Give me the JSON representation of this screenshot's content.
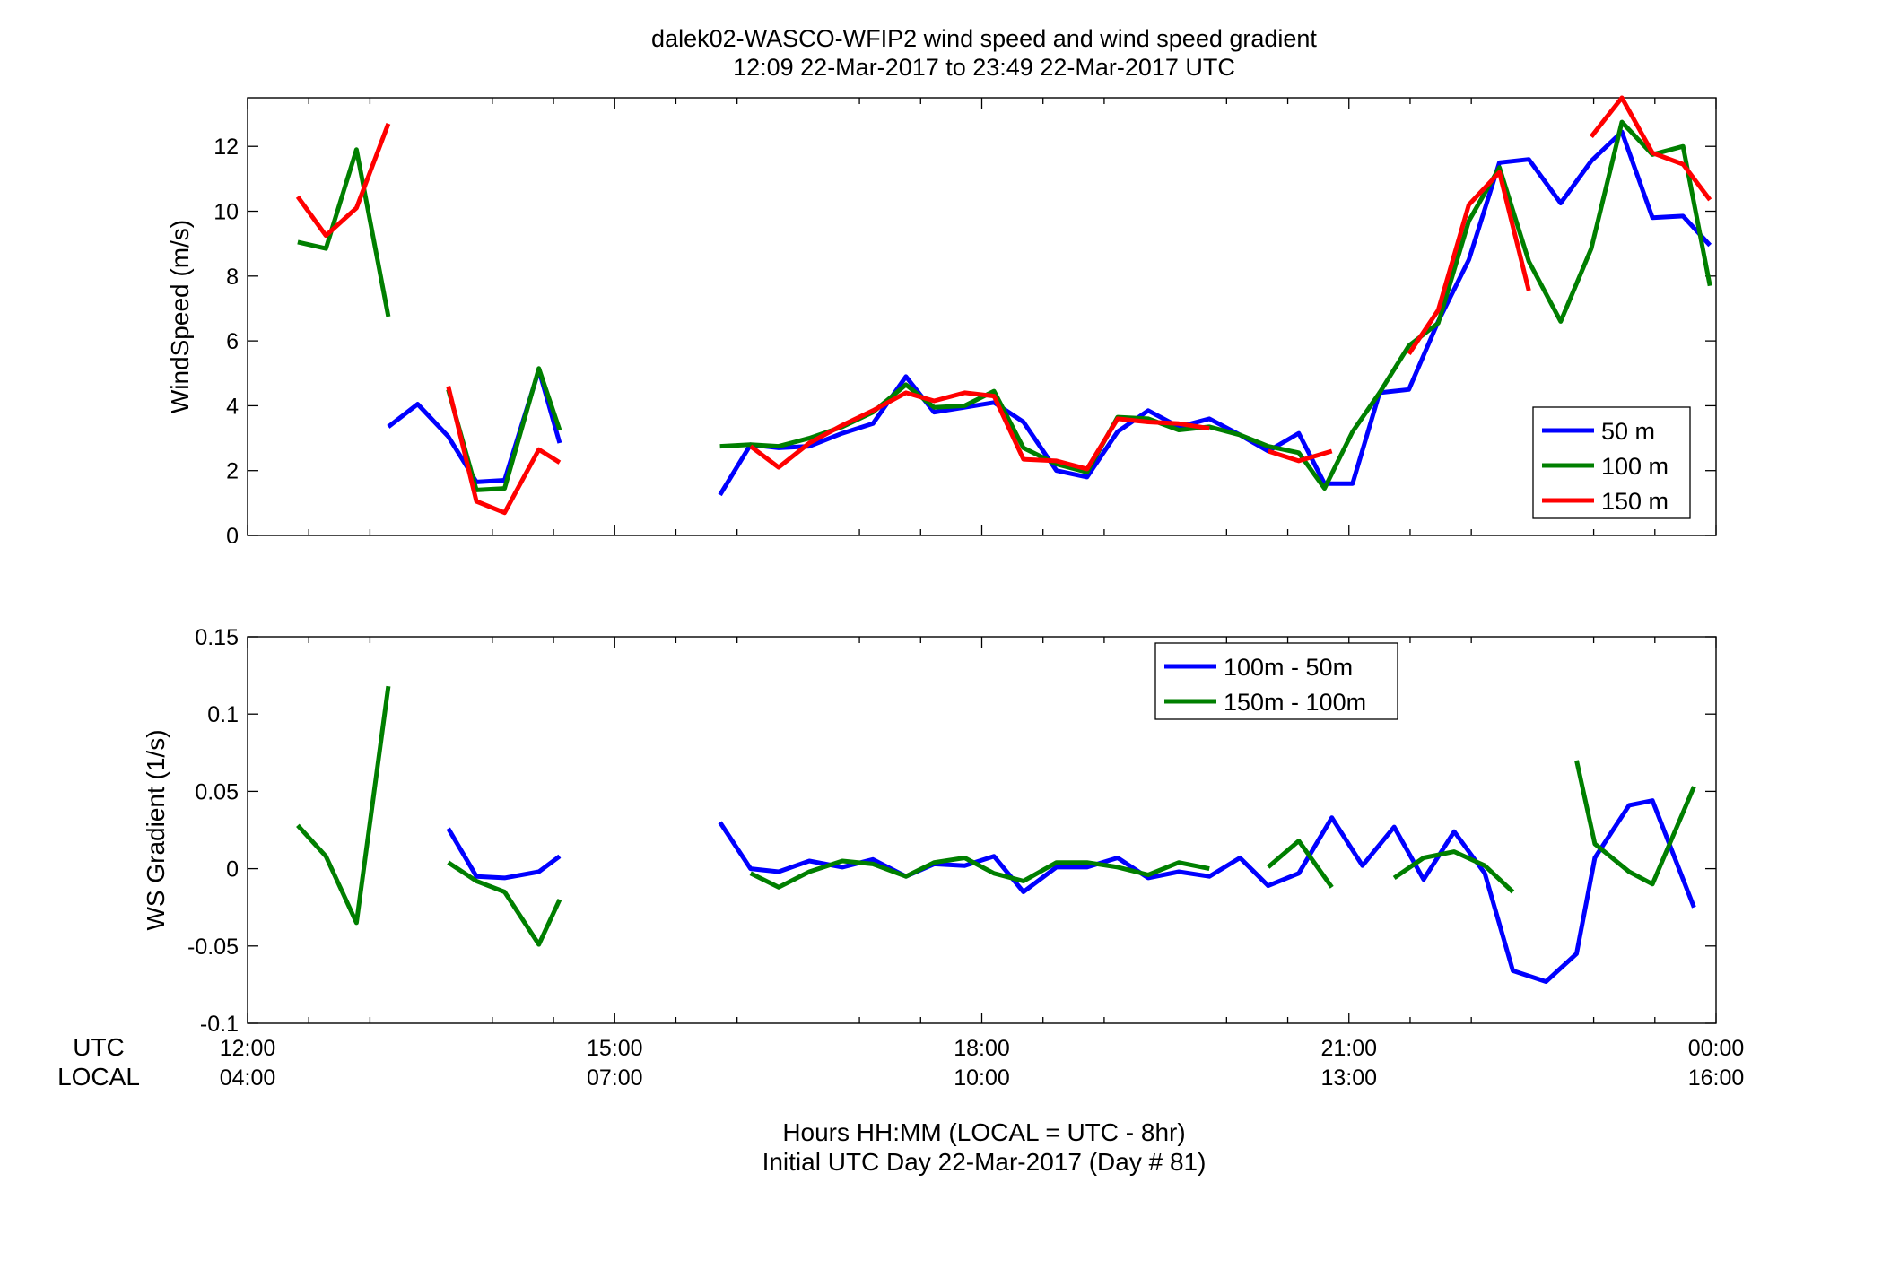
{
  "figure": {
    "title_line1": "dalek02-WASCO-WFIP2  wind speed and wind speed gradient",
    "title_line2": "12:09 22-Mar-2017 to 23:49 22-Mar-2017  UTC",
    "xlabel_line1": "Hours HH:MM  (LOCAL = UTC - 8hr)",
    "xlabel_line2": "Initial UTC Day 22-Mar-2017 (Day # 81)",
    "utc_row_label": "UTC",
    "local_row_label": "LOCAL",
    "utc_ticks": [
      "12:00",
      "15:00",
      "18:00",
      "21:00",
      "00:00"
    ],
    "local_ticks": [
      "04:00",
      "07:00",
      "10:00",
      "13:00",
      "16:00"
    ]
  },
  "chart_data": [
    {
      "type": "line",
      "title": "",
      "xlabel": "",
      "ylabel": "WindSpeed (m/s)",
      "xlim": [
        12.0,
        24.0
      ],
      "ylim": [
        0,
        13.5
      ],
      "yticks": [
        0,
        2,
        4,
        6,
        8,
        10,
        12
      ],
      "ytick_labels": [
        "0",
        "2",
        "4",
        "6",
        "8",
        "10",
        "12"
      ],
      "grid": false,
      "legend": "lower-right",
      "series": [
        {
          "name": "50 m",
          "color": "#0000ff",
          "segments": [
            [
              [
                13.15,
                3.35
              ],
              [
                13.39,
                4.05
              ],
              [
                13.64,
                3.05
              ],
              [
                13.87,
                1.65
              ],
              [
                14.1,
                1.7
              ],
              [
                14.38,
                5.1
              ],
              [
                14.55,
                2.85
              ]
            ],
            [
              [
                15.86,
                1.25
              ],
              [
                16.11,
                2.8
              ],
              [
                16.34,
                2.7
              ],
              [
                16.59,
                2.75
              ],
              [
                16.86,
                3.15
              ],
              [
                17.11,
                3.45
              ],
              [
                17.38,
                4.9
              ],
              [
                17.61,
                3.8
              ],
              [
                17.86,
                3.95
              ],
              [
                18.1,
                4.1
              ],
              [
                18.34,
                3.5
              ],
              [
                18.61,
                2.0
              ],
              [
                18.86,
                1.8
              ],
              [
                19.11,
                3.2
              ],
              [
                19.36,
                3.85
              ],
              [
                19.61,
                3.35
              ],
              [
                19.86,
                3.6
              ],
              [
                20.11,
                3.1
              ],
              [
                20.34,
                2.6
              ],
              [
                20.59,
                3.15
              ],
              [
                20.8,
                1.6
              ],
              [
                21.03,
                1.6
              ],
              [
                21.25,
                4.4
              ],
              [
                21.49,
                4.5
              ],
              [
                21.73,
                6.6
              ],
              [
                21.98,
                8.5
              ],
              [
                22.23,
                11.5
              ],
              [
                22.47,
                11.6
              ],
              [
                22.73,
                10.25
              ],
              [
                22.98,
                11.55
              ],
              [
                23.23,
                12.45
              ],
              [
                23.48,
                9.8
              ],
              [
                23.73,
                9.85
              ],
              [
                23.95,
                8.95
              ]
            ]
          ]
        },
        {
          "name": "100 m",
          "color": "#007f00",
          "segments": [
            [
              [
                12.41,
                9.05
              ],
              [
                12.64,
                8.85
              ],
              [
                12.89,
                11.9
              ],
              [
                13.15,
                6.75
              ]
            ],
            [
              [
                13.64,
                4.5
              ],
              [
                13.87,
                1.4
              ],
              [
                14.1,
                1.45
              ],
              [
                14.38,
                5.15
              ],
              [
                14.55,
                3.25
              ]
            ],
            [
              [
                15.86,
                2.75
              ],
              [
                16.11,
                2.8
              ],
              [
                16.34,
                2.75
              ],
              [
                16.59,
                3.0
              ],
              [
                16.86,
                3.35
              ],
              [
                17.11,
                3.8
              ],
              [
                17.38,
                4.65
              ],
              [
                17.61,
                3.95
              ],
              [
                17.86,
                4.0
              ],
              [
                18.1,
                4.45
              ],
              [
                18.34,
                2.7
              ],
              [
                18.61,
                2.2
              ],
              [
                18.86,
                1.95
              ],
              [
                19.11,
                3.65
              ],
              [
                19.36,
                3.6
              ],
              [
                19.61,
                3.25
              ],
              [
                19.86,
                3.35
              ],
              [
                20.11,
                3.1
              ],
              [
                20.34,
                2.75
              ],
              [
                20.59,
                2.55
              ],
              [
                20.8,
                1.45
              ],
              [
                21.03,
                3.2
              ],
              [
                21.25,
                4.4
              ],
              [
                21.49,
                5.85
              ],
              [
                21.73,
                6.55
              ],
              [
                21.98,
                9.7
              ],
              [
                22.23,
                11.35
              ],
              [
                22.47,
                8.45
              ],
              [
                22.73,
                6.6
              ],
              [
                22.98,
                8.85
              ],
              [
                23.23,
                12.75
              ],
              [
                23.48,
                11.75
              ],
              [
                23.73,
                12.0
              ],
              [
                23.95,
                7.7
              ]
            ]
          ]
        },
        {
          "name": "150 m",
          "color": "#ff0000",
          "segments": [
            [
              [
                12.41,
                10.45
              ],
              [
                12.64,
                9.25
              ],
              [
                12.89,
                10.1
              ],
              [
                13.15,
                12.7
              ]
            ],
            [
              [
                13.64,
                4.6
              ],
              [
                13.87,
                1.05
              ],
              [
                14.1,
                0.7
              ],
              [
                14.38,
                2.65
              ],
              [
                14.55,
                2.25
              ]
            ],
            [
              [
                16.11,
                2.75
              ],
              [
                16.34,
                2.1
              ],
              [
                16.59,
                2.85
              ],
              [
                16.86,
                3.4
              ],
              [
                17.11,
                3.85
              ],
              [
                17.38,
                4.4
              ],
              [
                17.61,
                4.15
              ],
              [
                17.86,
                4.4
              ],
              [
                18.1,
                4.3
              ],
              [
                18.34,
                2.35
              ],
              [
                18.61,
                2.3
              ],
              [
                18.86,
                2.05
              ],
              [
                19.11,
                3.6
              ],
              [
                19.36,
                3.5
              ],
              [
                19.61,
                3.45
              ],
              [
                19.86,
                3.3
              ]
            ],
            [
              [
                20.34,
                2.6
              ],
              [
                20.59,
                2.3
              ],
              [
                20.86,
                2.6
              ]
            ],
            [
              [
                21.49,
                5.6
              ],
              [
                21.73,
                6.95
              ],
              [
                21.98,
                10.2
              ],
              [
                22.23,
                11.2
              ],
              [
                22.47,
                7.55
              ]
            ],
            [
              [
                22.98,
                12.3
              ],
              [
                23.23,
                13.5
              ],
              [
                23.48,
                11.8
              ],
              [
                23.73,
                11.45
              ],
              [
                23.95,
                10.35
              ]
            ]
          ]
        }
      ]
    },
    {
      "type": "line",
      "title": "",
      "xlabel": "",
      "ylabel": "WS Gradient (1/s)",
      "xlim": [
        12.0,
        24.0
      ],
      "ylim": [
        -0.1,
        0.15
      ],
      "yticks": [
        -0.1,
        -0.05,
        0,
        0.05,
        0.1,
        0.15
      ],
      "ytick_labels": [
        "-0.1",
        "-0.05",
        "0",
        "0.05",
        "0.1",
        "0.15"
      ],
      "grid": false,
      "legend": "top-right",
      "series": [
        {
          "name": "100m - 50m",
          "color": "#0000ff",
          "segments": [
            [
              [
                13.64,
                0.026
              ],
              [
                13.87,
                -0.005
              ],
              [
                14.1,
                -0.006
              ],
              [
                14.38,
                -0.002
              ],
              [
                14.55,
                0.008
              ]
            ],
            [
              [
                15.86,
                0.03
              ],
              [
                16.11,
                0.0
              ],
              [
                16.34,
                -0.002
              ],
              [
                16.59,
                0.005
              ],
              [
                16.86,
                0.001
              ],
              [
                17.11,
                0.006
              ],
              [
                17.38,
                -0.005
              ],
              [
                17.61,
                0.003
              ],
              [
                17.86,
                0.002
              ],
              [
                18.1,
                0.008
              ],
              [
                18.34,
                -0.015
              ],
              [
                18.61,
                0.001
              ],
              [
                18.86,
                0.001
              ],
              [
                19.11,
                0.007
              ],
              [
                19.36,
                -0.006
              ],
              [
                19.61,
                -0.002
              ],
              [
                19.86,
                -0.005
              ],
              [
                20.11,
                0.007
              ],
              [
                20.34,
                -0.011
              ],
              [
                20.59,
                -0.003
              ],
              [
                20.86,
                0.033
              ],
              [
                21.11,
                0.002
              ],
              [
                21.37,
                0.027
              ],
              [
                21.61,
                -0.007
              ],
              [
                21.86,
                0.024
              ],
              [
                22.11,
                -0.003
              ],
              [
                22.34,
                -0.066
              ],
              [
                22.61,
                -0.073
              ],
              [
                22.86,
                -0.055
              ],
              [
                23.01,
                0.007
              ],
              [
                23.29,
                0.041
              ],
              [
                23.48,
                0.044
              ],
              [
                23.82,
                -0.025
              ]
            ]
          ]
        },
        {
          "name": "150m - 100m",
          "color": "#007f00",
          "segments": [
            [
              [
                12.41,
                0.028
              ],
              [
                12.64,
                0.008
              ],
              [
                12.89,
                -0.035
              ],
              [
                13.15,
                0.118
              ]
            ],
            [
              [
                13.64,
                0.004
              ],
              [
                13.87,
                -0.008
              ],
              [
                14.1,
                -0.015
              ],
              [
                14.38,
                -0.049
              ],
              [
                14.55,
                -0.02
              ]
            ],
            [
              [
                16.11,
                -0.003
              ],
              [
                16.34,
                -0.012
              ],
              [
                16.59,
                -0.002
              ],
              [
                16.86,
                0.005
              ],
              [
                17.11,
                0.003
              ],
              [
                17.38,
                -0.005
              ],
              [
                17.61,
                0.004
              ],
              [
                17.86,
                0.007
              ],
              [
                18.1,
                -0.003
              ],
              [
                18.34,
                -0.008
              ],
              [
                18.61,
                0.004
              ],
              [
                18.86,
                0.004
              ],
              [
                19.11,
                0.001
              ],
              [
                19.36,
                -0.004
              ],
              [
                19.61,
                0.004
              ],
              [
                19.86,
                0.0
              ]
            ],
            [
              [
                20.34,
                0.001
              ],
              [
                20.59,
                0.018
              ],
              [
                20.86,
                -0.012
              ]
            ],
            [
              [
                21.37,
                -0.006
              ],
              [
                21.61,
                0.007
              ],
              [
                21.86,
                0.011
              ],
              [
                22.11,
                0.002
              ],
              [
                22.34,
                -0.015
              ]
            ],
            [
              [
                22.86,
                0.07
              ],
              [
                23.01,
                0.016
              ],
              [
                23.29,
                -0.002
              ],
              [
                23.48,
                -0.01
              ],
              [
                23.82,
                0.053
              ]
            ]
          ]
        }
      ]
    }
  ]
}
